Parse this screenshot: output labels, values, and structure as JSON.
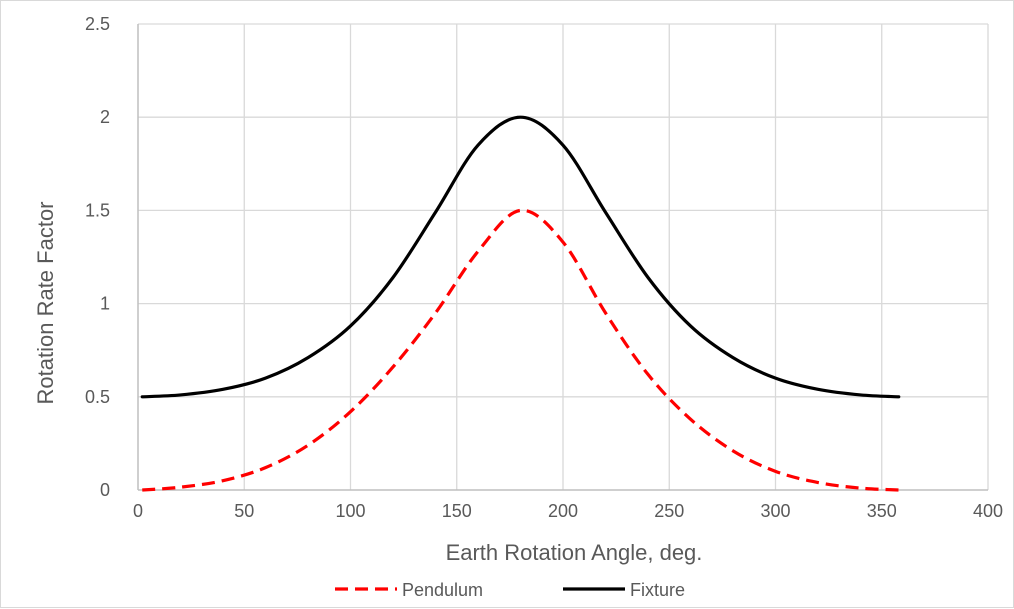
{
  "chart_data": {
    "type": "line",
    "title": "",
    "xlabel": "Earth Rotation Angle, deg.",
    "ylabel": "Rotation Rate Factor",
    "xlim": [
      0,
      400
    ],
    "ylim": [
      0,
      2.5
    ],
    "xticks": [
      0,
      50,
      100,
      150,
      200,
      250,
      300,
      350,
      400
    ],
    "yticks": [
      0,
      0.5,
      1,
      1.5,
      2,
      2.5
    ],
    "ytick_labels": [
      "0",
      "0.5",
      "1",
      "1.5",
      "2",
      "2.5"
    ],
    "grid": true,
    "legend_position": "bottom",
    "series": [
      {
        "name": "Pendulum",
        "color": "#ff0000",
        "style": "dashed",
        "x": [
          2,
          20,
          40,
          60,
          80,
          100,
          120,
          140,
          160,
          180,
          200,
          220,
          240,
          260,
          280,
          300,
          320,
          340,
          358
        ],
        "y": [
          0.0,
          0.015,
          0.05,
          0.12,
          0.24,
          0.42,
          0.66,
          0.95,
          1.28,
          1.5,
          1.33,
          0.95,
          0.62,
          0.38,
          0.21,
          0.1,
          0.04,
          0.01,
          0.0
        ]
      },
      {
        "name": "Fixture",
        "color": "#000000",
        "style": "solid",
        "x": [
          2,
          20,
          40,
          60,
          80,
          100,
          120,
          140,
          160,
          180,
          200,
          220,
          240,
          260,
          280,
          300,
          320,
          340,
          358
        ],
        "y": [
          0.5,
          0.51,
          0.54,
          0.6,
          0.71,
          0.88,
          1.14,
          1.49,
          1.85,
          2.0,
          1.85,
          1.49,
          1.14,
          0.88,
          0.71,
          0.6,
          0.54,
          0.51,
          0.5
        ]
      }
    ]
  }
}
